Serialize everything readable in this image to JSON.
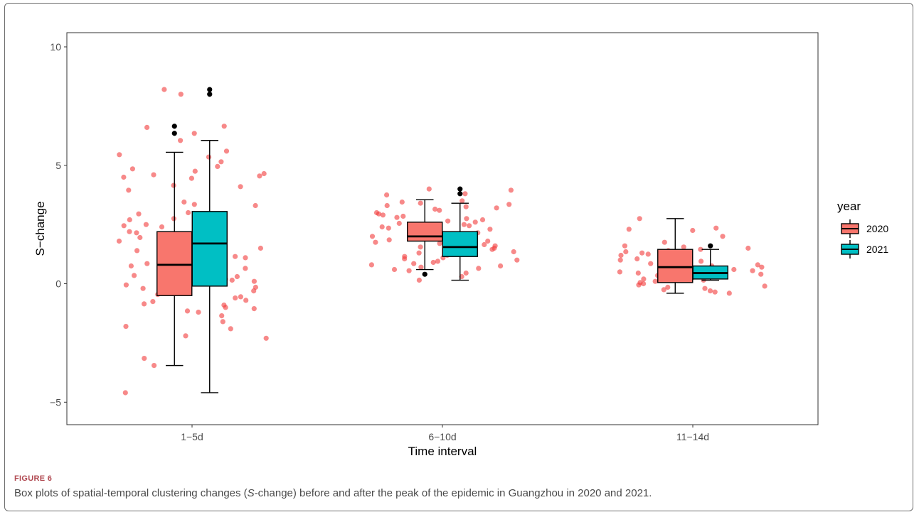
{
  "figure": {
    "label": "FIGURE 6",
    "caption_prefix": "Box plots of spatial-temporal clustering changes (",
    "caption_italic": "S",
    "caption_suffix": "-change) before and after the peak of the epidemic in Guangzhou in 2020 and 2021."
  },
  "colors": {
    "2020": "#f8766d",
    "2021": "#00bfc4",
    "jitter": "#f23b3b",
    "outlier": "#000000",
    "panel_border": "#333333"
  },
  "chart_data": {
    "type": "box",
    "title": "",
    "xlabel": "Time interval",
    "ylabel": "S−change",
    "ylim": [
      -5.95,
      10.6
    ],
    "yticks": [
      -5,
      0,
      5,
      10
    ],
    "ytick_labels": [
      "−5",
      "0",
      "5",
      "10"
    ],
    "categories": [
      "1−5d",
      "6−10d",
      "11−14d"
    ],
    "grid": false,
    "legend": {
      "title": "year",
      "placement": "right",
      "entries": [
        "2020",
        "2021"
      ]
    },
    "series": [
      {
        "name": "2020",
        "boxes": [
          {
            "category": "1−5d",
            "whisker_low": -3.45,
            "q1": -0.5,
            "median": 0.8,
            "q3": 2.2,
            "whisker_high": 5.55,
            "outliers": [
              6.35,
              6.65
            ]
          },
          {
            "category": "6−10d",
            "whisker_low": 0.6,
            "q1": 1.8,
            "median": 2.0,
            "q3": 2.6,
            "whisker_high": 3.55,
            "outliers": [
              0.4
            ]
          },
          {
            "category": "11−14d",
            "whisker_low": -0.4,
            "q1": 0.05,
            "median": 0.7,
            "q3": 1.45,
            "whisker_high": 2.75,
            "outliers": []
          }
        ]
      },
      {
        "name": "2021",
        "boxes": [
          {
            "category": "1−5d",
            "whisker_low": -4.6,
            "q1": -0.1,
            "median": 1.7,
            "q3": 3.05,
            "whisker_high": 6.05,
            "outliers": [
              8.0,
              8.2
            ]
          },
          {
            "category": "6−10d",
            "whisker_low": 0.15,
            "q1": 1.15,
            "median": 1.55,
            "q3": 2.2,
            "whisker_high": 3.4,
            "outliers": [
              3.8,
              4.0
            ]
          },
          {
            "category": "11−14d",
            "whisker_low": 0.15,
            "q1": 0.2,
            "median": 0.45,
            "q3": 0.75,
            "whisker_high": 1.45,
            "outliers": [
              1.6
            ]
          }
        ]
      }
    ],
    "jitter_points": [
      {
        "category": "1−5d",
        "values": [
          8.2,
          8.0,
          6.65,
          6.6,
          6.35,
          6.05,
          5.6,
          5.45,
          5.35,
          5.15,
          4.95,
          4.85,
          4.75,
          4.65,
          4.6,
          4.55,
          4.5,
          4.45,
          4.15,
          4.1,
          3.95,
          3.45,
          3.35,
          3.3,
          3.0,
          2.95,
          2.75,
          2.7,
          2.5,
          2.45,
          2.4,
          2.2,
          2.2,
          2.15,
          1.95,
          1.8,
          1.65,
          1.6,
          1.5,
          1.45,
          1.4,
          1.35,
          1.2,
          1.15,
          1.1,
          1.0,
          0.95,
          0.85,
          0.8,
          0.75,
          0.65,
          0.55,
          0.45,
          0.35,
          0.3,
          0.2,
          0.15,
          0.1,
          0.05,
          0.0,
          -0.05,
          -0.15,
          -0.2,
          -0.3,
          -0.45,
          -0.55,
          -0.6,
          -0.7,
          -0.75,
          -0.85,
          -0.9,
          -1.0,
          -1.05,
          -1.15,
          -1.2,
          -1.35,
          -1.6,
          -1.8,
          -1.9,
          -2.2,
          -2.3,
          -3.15,
          -3.45,
          -4.6
        ]
      },
      {
        "category": "6−10d",
        "values": [
          4.0,
          3.95,
          3.8,
          3.75,
          3.5,
          3.45,
          3.4,
          3.35,
          3.3,
          3.25,
          3.2,
          3.15,
          3.1,
          3.0,
          2.95,
          2.9,
          2.85,
          2.8,
          2.75,
          2.7,
          2.65,
          2.6,
          2.55,
          2.5,
          2.45,
          2.4,
          2.35,
          2.3,
          2.25,
          2.2,
          2.15,
          2.1,
          2.05,
          2.0,
          1.95,
          1.9,
          1.85,
          1.8,
          1.75,
          1.7,
          1.65,
          1.6,
          1.55,
          1.5,
          1.45,
          1.4,
          1.35,
          1.3,
          1.25,
          1.2,
          1.15,
          1.1,
          1.05,
          1.0,
          0.95,
          0.9,
          0.85,
          0.8,
          0.75,
          0.7,
          0.65,
          0.6,
          0.55,
          0.45,
          0.3,
          0.15
        ]
      },
      {
        "category": "11−14d",
        "values": [
          2.75,
          2.35,
          2.3,
          2.25,
          2.0,
          1.75,
          1.6,
          1.55,
          1.5,
          1.45,
          1.4,
          1.35,
          1.3,
          1.25,
          1.2,
          1.15,
          1.1,
          1.05,
          1.0,
          0.95,
          0.9,
          0.85,
          0.8,
          0.75,
          0.7,
          0.65,
          0.6,
          0.55,
          0.5,
          0.45,
          0.4,
          0.35,
          0.3,
          0.25,
          0.2,
          0.15,
          0.1,
          0.05,
          0.0,
          -0.05,
          -0.1,
          -0.15,
          -0.2,
          -0.25,
          -0.3,
          -0.35,
          -0.4
        ]
      }
    ]
  }
}
